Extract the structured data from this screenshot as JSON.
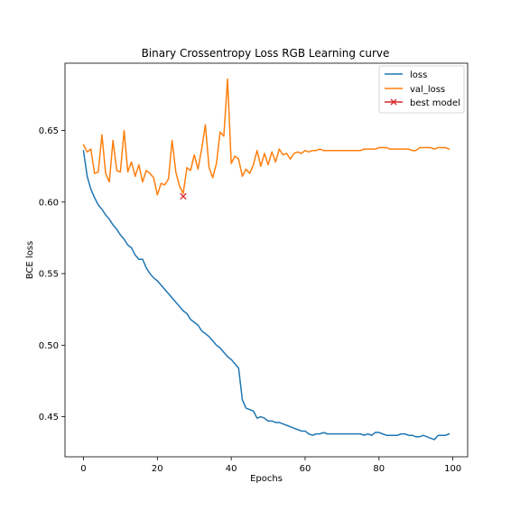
{
  "chart_data": {
    "type": "line",
    "title": "Binary Crossentropy Loss RGB Learning curve",
    "xlabel": "Epochs",
    "ylabel": "BCE loss",
    "xlim": [
      -5,
      104
    ],
    "ylim": [
      0.422,
      0.697
    ],
    "xticks": [
      0,
      20,
      40,
      60,
      80,
      100
    ],
    "yticks": [
      0.45,
      0.5,
      0.55,
      0.6,
      0.65
    ],
    "xtick_labels": [
      "0",
      "20",
      "40",
      "60",
      "80",
      "100"
    ],
    "ytick_labels": [
      "0.45",
      "0.50",
      "0.55",
      "0.60",
      "0.65"
    ],
    "grid": false,
    "legend_position": "top-right",
    "series": [
      {
        "name": "loss",
        "color": "#1f77b4",
        "values": [
          0.636,
          0.618,
          0.609,
          0.603,
          0.598,
          0.595,
          0.591,
          0.588,
          0.584,
          0.581,
          0.577,
          0.574,
          0.57,
          0.568,
          0.563,
          0.56,
          0.56,
          0.554,
          0.55,
          0.547,
          0.545,
          0.542,
          0.539,
          0.536,
          0.533,
          0.53,
          0.527,
          0.524,
          0.522,
          0.518,
          0.516,
          0.514,
          0.51,
          0.508,
          0.506,
          0.503,
          0.5,
          0.498,
          0.495,
          0.492,
          0.49,
          0.487,
          0.484,
          0.462,
          0.456,
          0.455,
          0.454,
          0.449,
          0.45,
          0.449,
          0.447,
          0.447,
          0.446,
          0.446,
          0.445,
          0.444,
          0.443,
          0.442,
          0.441,
          0.44,
          0.44,
          0.438,
          0.437,
          0.438,
          0.438,
          0.439,
          0.438,
          0.438,
          0.438,
          0.438,
          0.438,
          0.438,
          0.438,
          0.438,
          0.438,
          0.438,
          0.437,
          0.438,
          0.437,
          0.439,
          0.439,
          0.438,
          0.437,
          0.437,
          0.437,
          0.437,
          0.438,
          0.438,
          0.437,
          0.437,
          0.436,
          0.436,
          0.437,
          0.436,
          0.435,
          0.434,
          0.437,
          0.437,
          0.437,
          0.438
        ]
      },
      {
        "name": "val_loss",
        "color": "#ff7f0e",
        "values": [
          0.64,
          0.635,
          0.637,
          0.62,
          0.621,
          0.647,
          0.62,
          0.614,
          0.643,
          0.622,
          0.621,
          0.65,
          0.621,
          0.628,
          0.618,
          0.626,
          0.614,
          0.622,
          0.62,
          0.617,
          0.605,
          0.613,
          0.612,
          0.616,
          0.643,
          0.621,
          0.611,
          0.606,
          0.624,
          0.622,
          0.633,
          0.623,
          0.637,
          0.654,
          0.624,
          0.617,
          0.627,
          0.649,
          0.646,
          0.686,
          0.627,
          0.632,
          0.63,
          0.618,
          0.623,
          0.62,
          0.626,
          0.636,
          0.625,
          0.634,
          0.626,
          0.635,
          0.628,
          0.637,
          0.633,
          0.634,
          0.63,
          0.634,
          0.635,
          0.634,
          0.636,
          0.635,
          0.636,
          0.636,
          0.637,
          0.636,
          0.636,
          0.636,
          0.636,
          0.636,
          0.636,
          0.636,
          0.636,
          0.636,
          0.636,
          0.636,
          0.637,
          0.637,
          0.637,
          0.637,
          0.638,
          0.638,
          0.638,
          0.637,
          0.637,
          0.637,
          0.637,
          0.637,
          0.637,
          0.636,
          0.636,
          0.638,
          0.638,
          0.638,
          0.638,
          0.637,
          0.638,
          0.638,
          0.638,
          0.637
        ]
      }
    ],
    "best_model": {
      "name": "best model",
      "x": 27,
      "y": 0.604,
      "color": "#d62728",
      "marker": "x"
    }
  }
}
